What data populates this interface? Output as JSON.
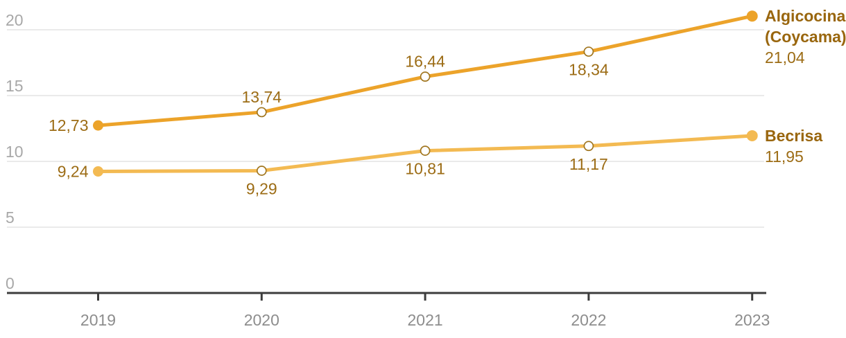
{
  "chart_data": {
    "type": "line",
    "x_labels": [
      "2019",
      "2020",
      "2021",
      "2022",
      "2023"
    ],
    "y_tick_labels": [
      "0",
      "5",
      "10",
      "15",
      "20"
    ],
    "y_tick_values": [
      0,
      5,
      10,
      15,
      20
    ],
    "ylim": [
      0,
      21.5
    ],
    "grid": true,
    "legend_position": "right-inline",
    "decimal_style": "comma",
    "series": [
      {
        "name": "Algicocina (Coycama)",
        "name_lines": [
          "Algicocina",
          "(Coycama)"
        ],
        "values": [
          12.73,
          13.74,
          16.44,
          18.34,
          21.04
        ],
        "value_labels": [
          "12,73",
          "13,74",
          "16,44",
          "18,34",
          "21,04"
        ],
        "color": "#eca32a"
      },
      {
        "name": "Becrisa",
        "name_lines": [
          "Becrisa"
        ],
        "values": [
          9.24,
          9.29,
          10.81,
          11.17,
          11.95
        ],
        "value_labels": [
          "9,24",
          "9,29",
          "10,81",
          "11,17",
          "11,95"
        ],
        "color": "#f3ba52"
      }
    ],
    "colors": {
      "background": "#ffffff",
      "grid": "#e4e4e4",
      "axis": "#3c3c3c",
      "y_tick_text": "#a8a8a8",
      "x_tick_text": "#8d8d8d",
      "data_label_text": "#9c6c15",
      "series_name_text": "#99660e",
      "open_marker_stroke": "#a1761f"
    }
  }
}
